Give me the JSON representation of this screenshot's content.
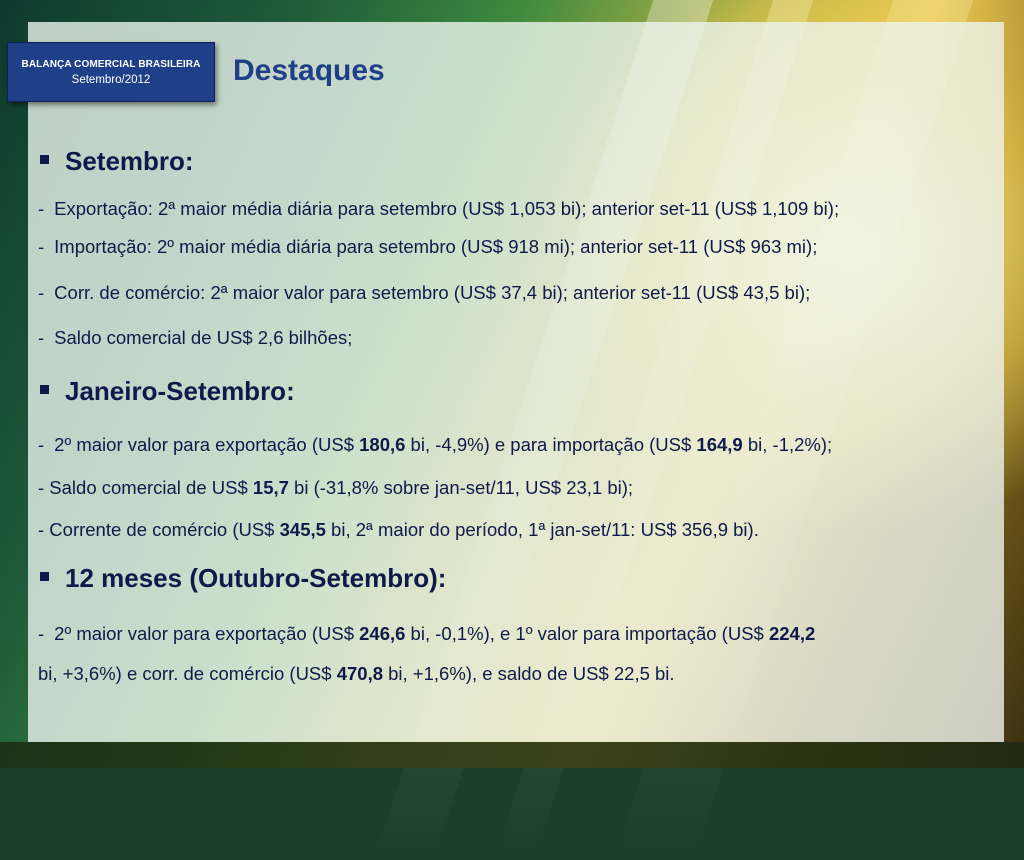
{
  "badge": {
    "line1": "BALANÇA COMERCIAL BRASILEIRA",
    "line2": "Setembro/2012"
  },
  "title": "Destaques",
  "sections": {
    "setembro": {
      "heading": "Setembro:",
      "items": [
        "Exportação: 2ª maior média diária para setembro (US$ 1,053 bi); anterior set-11 (US$ 1,109 bi);",
        "Importação: 2º maior média diária para setembro (US$ 918 mi); anterior set-11 (US$ 963 mi);",
        "Corr. de comércio: 2ª maior valor para setembro (US$ 37,4 bi); anterior set-11 (US$ 43,5 bi);",
        "Saldo comercial de US$ 2,6 bilhões;"
      ]
    },
    "jan_set": {
      "heading": "Janeiro-Setembro:",
      "l1": {
        "a": "2º maior valor para exportação (US$ ",
        "b": "180,6",
        "c": " bi, -4,9%) e para importação (US$ ",
        "d": "164,9",
        "e": " bi, -1,2%);"
      },
      "l2": {
        "a": "- Saldo comercial de US$ ",
        "b": "15,7",
        "c": " bi (-31,8% sobre jan-set/11, US$ 23,1 bi);"
      },
      "l3": {
        "a": "- Corrente de comércio (US$ ",
        "b": "345,5",
        "c": " bi, 2ª maior do período, 1ª jan-set/11: US$ 356,9 bi)."
      }
    },
    "doze_meses": {
      "heading": "12 meses (Outubro-Setembro):",
      "l1": {
        "a": "2º maior  valor para exportação (US$ ",
        "b": "246,6",
        "c": " bi, -0,1%),  e 1º valor para importação (US$ ",
        "d": "224,2"
      },
      "l2": {
        "a": "bi, +3,6%) e corr. de comércio (US$ ",
        "b": "470,8",
        "c": " bi, +1,6%),  e saldo de US$ 22,5 bi."
      }
    }
  },
  "colors": {
    "accent": "#1f3f88",
    "text": "#0f1a4a"
  }
}
